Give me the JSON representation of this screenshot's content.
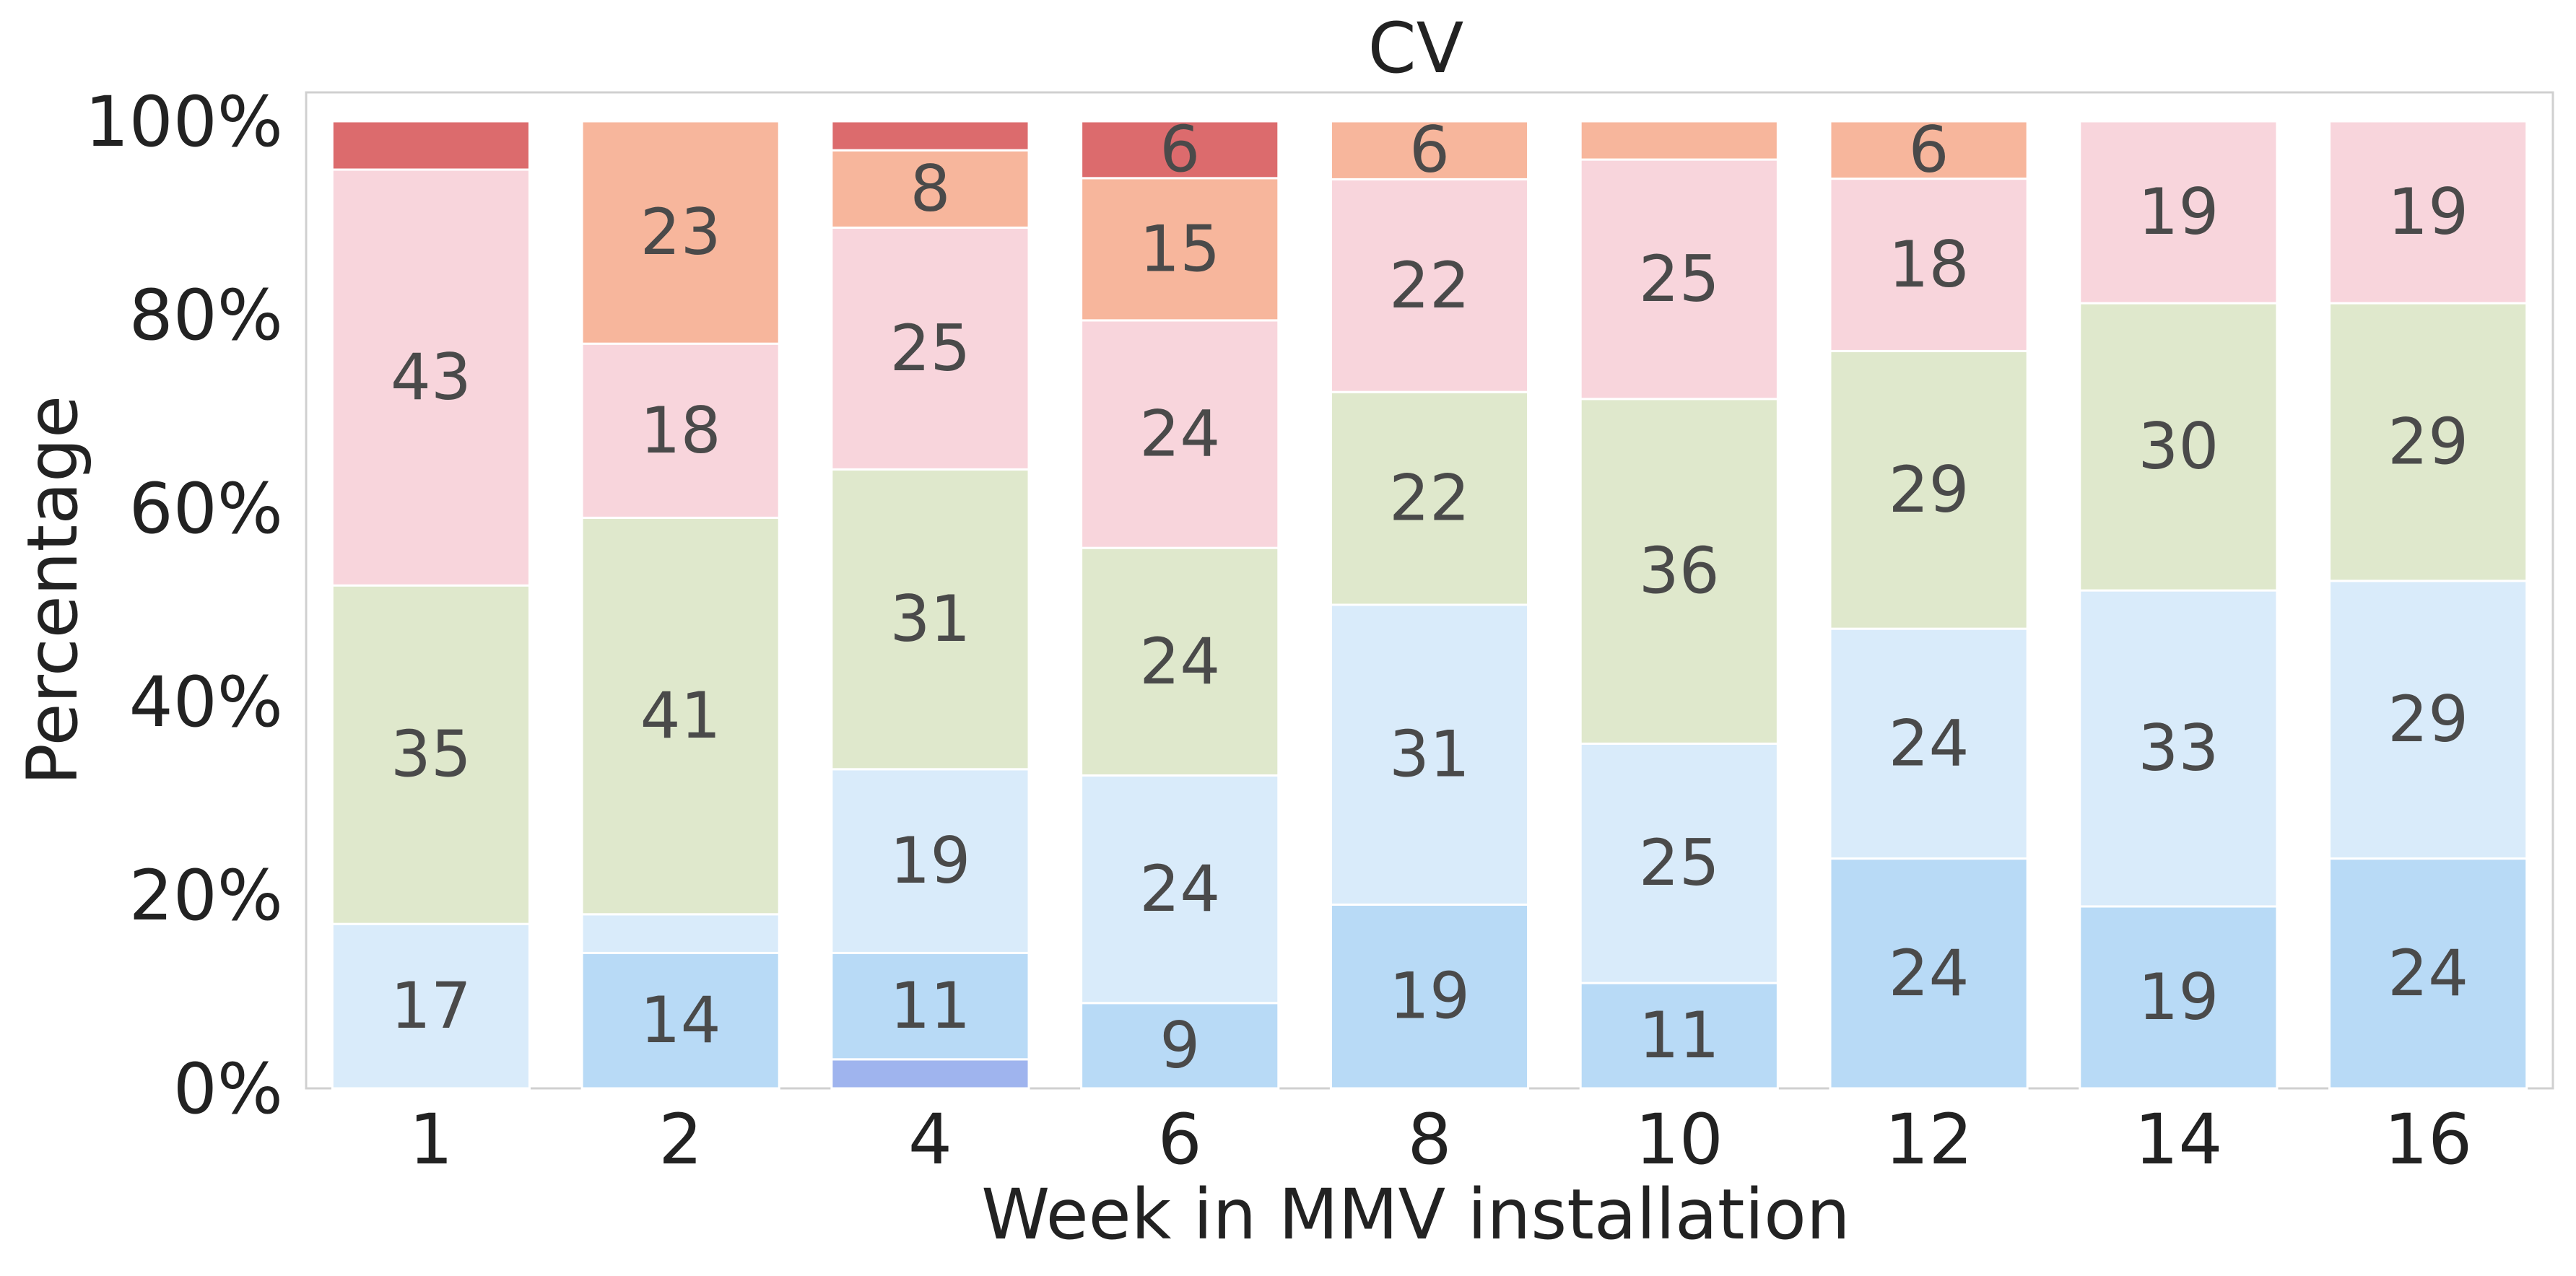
{
  "chart_data": {
    "type": "bar",
    "stacked": true,
    "title": "CV",
    "xlabel": "Week in MMV installation",
    "ylabel": "Percentage",
    "categories": [
      "1",
      "2",
      "4",
      "6",
      "8",
      "10",
      "12",
      "14",
      "16"
    ],
    "ylim": [
      0,
      100
    ],
    "yticks": [
      "0%",
      "20%",
      "40%",
      "60%",
      "80%",
      "100%"
    ],
    "grid": false,
    "legend": "none",
    "series": [
      {
        "color": "#9fb4ee",
        "values": [
          0,
          0,
          3,
          0,
          0,
          0,
          0,
          0,
          0
        ],
        "labels": [
          "",
          "",
          "",
          "",
          "",
          "",
          "",
          "",
          ""
        ]
      },
      {
        "color": "#b8daf6",
        "values": [
          0,
          14,
          11,
          9,
          19,
          11,
          24,
          19,
          24
        ],
        "labels": [
          "",
          "14",
          "11",
          "9",
          "19",
          "11",
          "24",
          "19",
          "24"
        ]
      },
      {
        "color": "#d9ebfa",
        "values": [
          17,
          4,
          19,
          24,
          31,
          25,
          24,
          33,
          29
        ],
        "labels": [
          "17",
          "",
          "19",
          "24",
          "31",
          "25",
          "24",
          "33",
          "29"
        ]
      },
      {
        "color": "#dfe8cc",
        "values": [
          35,
          41,
          31,
          24,
          22,
          36,
          29,
          30,
          29
        ],
        "labels": [
          "35",
          "41",
          "31",
          "24",
          "22",
          "36",
          "29",
          "30",
          "29"
        ]
      },
      {
        "color": "#f8d5dc",
        "values": [
          43,
          18,
          25,
          24,
          22,
          25,
          18,
          19,
          19
        ],
        "labels": [
          "43",
          "18",
          "25",
          "24",
          "22",
          "25",
          "18",
          "19",
          "19"
        ]
      },
      {
        "color": "#f7b69c",
        "values": [
          0,
          23,
          8,
          15,
          6,
          4,
          6,
          0,
          0
        ],
        "labels": [
          "",
          "23",
          "8",
          "15",
          "6",
          "",
          "6",
          "",
          ""
        ]
      },
      {
        "color": "#dc6b6d",
        "values": [
          5,
          0,
          3,
          6,
          0,
          0,
          0,
          0,
          0
        ],
        "labels": [
          "",
          "",
          "",
          "6",
          "",
          "",
          "",
          "",
          ""
        ]
      }
    ]
  }
}
